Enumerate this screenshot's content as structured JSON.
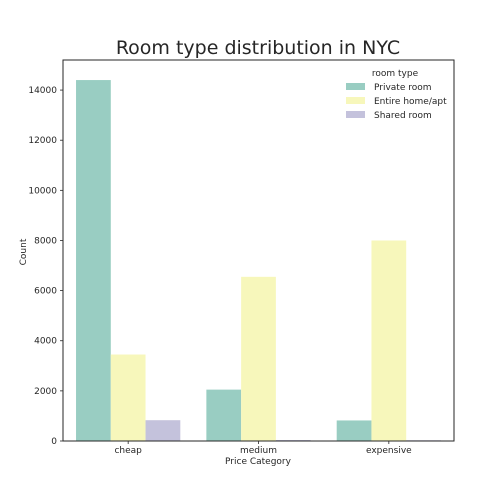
{
  "chart_data": {
    "type": "bar",
    "title": "Room type distribution in NYC",
    "xlabel": "Price Category",
    "ylabel": "Count",
    "categories": [
      "cheap",
      "medium",
      "expensive"
    ],
    "ylim": [
      0,
      15200
    ],
    "yticks": [
      0,
      2000,
      4000,
      6000,
      8000,
      10000,
      12000,
      14000
    ],
    "ytick_labels": [
      "0",
      "2000",
      "4000",
      "6000",
      "8000",
      "10000",
      "12000",
      "14000"
    ],
    "legend": {
      "title": "room type",
      "position": "top-right"
    },
    "grid": false,
    "series": [
      {
        "name": "Private room",
        "color": "#99cdc2",
        "values": [
          14400,
          2050,
          820
        ]
      },
      {
        "name": "Entire home/apt",
        "color": "#f7f7bb",
        "values": [
          3450,
          6550,
          8000
        ]
      },
      {
        "name": "Shared room",
        "color": "#c4c2dc",
        "values": [
          830,
          40,
          30
        ]
      }
    ]
  }
}
